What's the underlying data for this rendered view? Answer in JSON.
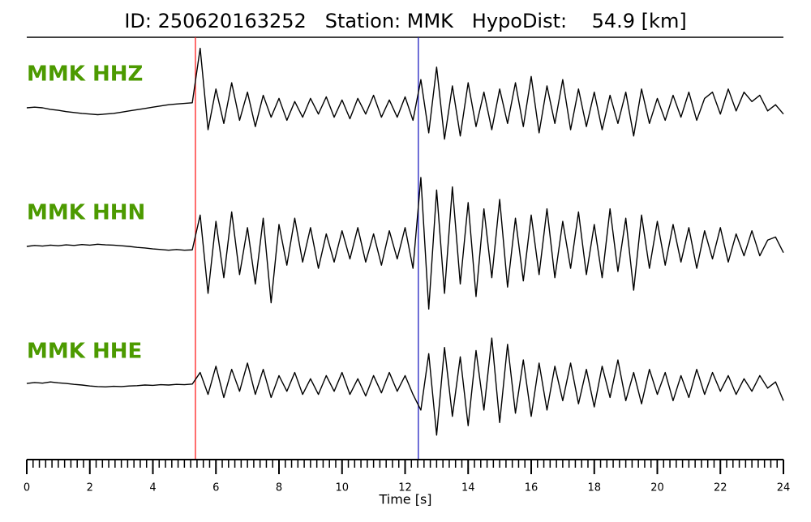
{
  "chart_data": {
    "type": "line",
    "title": "ID: 250620163252   Station: MMK   HypoDist:    54.9 [km]",
    "xlabel": "Time [s]",
    "x": [
      0,
      0.25,
      0.5,
      0.75,
      1,
      1.25,
      1.5,
      1.75,
      2,
      2.25,
      2.5,
      2.75,
      3,
      3.25,
      3.5,
      3.75,
      4,
      4.25,
      4.5,
      4.75,
      5,
      5.25,
      5.5,
      5.75,
      6,
      6.25,
      6.5,
      6.75,
      7,
      7.25,
      7.5,
      7.75,
      8,
      8.25,
      8.5,
      8.75,
      9,
      9.25,
      9.5,
      9.75,
      10,
      10.25,
      10.5,
      10.75,
      11,
      11.25,
      11.5,
      11.75,
      12,
      12.25,
      12.5,
      12.75,
      13,
      13.25,
      13.5,
      13.75,
      14,
      14.25,
      14.5,
      14.75,
      15,
      15.25,
      15.5,
      15.75,
      16,
      16.25,
      16.5,
      16.75,
      17,
      17.25,
      17.5,
      17.75,
      18,
      18.25,
      18.5,
      18.75,
      19,
      19.25,
      19.5,
      19.75,
      20,
      20.25,
      20.5,
      20.75,
      21,
      21.25,
      21.5,
      21.75,
      22,
      22.25,
      22.5,
      22.75,
      23,
      23.25,
      23.5,
      23.75,
      24
    ],
    "xlim": [
      0,
      24
    ],
    "xticks": [
      0,
      2,
      4,
      6,
      8,
      10,
      12,
      14,
      16,
      18,
      20,
      22,
      24
    ],
    "xminor_step": 0.2,
    "ylim": [
      -2.2,
      2.2
    ],
    "label_color": "#4c9a00",
    "vlines": [
      {
        "value": 5.35,
        "color": "#ff2020"
      },
      {
        "value": 12.42,
        "color": "#2020c0"
      }
    ],
    "series": [
      {
        "name": "MMK HHZ",
        "color": "#000000",
        "values": [
          0,
          0.02,
          0.0,
          -0.05,
          -0.08,
          -0.12,
          -0.15,
          -0.18,
          -0.2,
          -0.22,
          -0.2,
          -0.18,
          -0.14,
          -0.1,
          -0.06,
          -0.02,
          0.02,
          0.06,
          0.1,
          0.12,
          0.14,
          0.16,
          1.9,
          -0.7,
          0.6,
          -0.5,
          0.8,
          -0.4,
          0.5,
          -0.6,
          0.4,
          -0.3,
          0.3,
          -0.4,
          0.2,
          -0.3,
          0.3,
          -0.2,
          0.35,
          -0.3,
          0.25,
          -0.35,
          0.3,
          -0.2,
          0.4,
          -0.3,
          0.25,
          -0.3,
          0.35,
          -0.4,
          0.9,
          -0.8,
          1.3,
          -1.0,
          0.7,
          -0.9,
          0.8,
          -0.6,
          0.5,
          -0.7,
          0.6,
          -0.5,
          0.8,
          -0.6,
          1.0,
          -0.8,
          0.7,
          -0.5,
          0.9,
          -0.7,
          0.6,
          -0.6,
          0.5,
          -0.7,
          0.4,
          -0.5,
          0.5,
          -0.9,
          0.6,
          -0.5,
          0.3,
          -0.4,
          0.4,
          -0.3,
          0.5,
          -0.4,
          0.3,
          0.5,
          -0.2,
          0.6,
          -0.1,
          0.5,
          0.2,
          0.4,
          -0.1,
          0.1,
          -0.2
        ]
      },
      {
        "name": "MMK HHN",
        "color": "#000000",
        "values": [
          0,
          0.03,
          0.01,
          0.04,
          0.02,
          0.05,
          0.03,
          0.06,
          0.04,
          0.07,
          0.05,
          0.04,
          0.02,
          0.0,
          -0.03,
          -0.05,
          -0.08,
          -0.1,
          -0.12,
          -0.1,
          -0.12,
          -0.11,
          1.0,
          -1.5,
          0.8,
          -1.0,
          1.1,
          -0.9,
          0.6,
          -1.2,
          0.9,
          -1.8,
          0.7,
          -0.6,
          0.9,
          -0.5,
          0.6,
          -0.7,
          0.4,
          -0.5,
          0.5,
          -0.4,
          0.6,
          -0.5,
          0.4,
          -0.6,
          0.5,
          -0.4,
          0.6,
          -0.7,
          2.2,
          -2.0,
          1.8,
          -1.5,
          1.9,
          -1.2,
          1.4,
          -1.6,
          1.2,
          -1.0,
          1.5,
          -1.3,
          0.9,
          -1.1,
          1.0,
          -0.9,
          1.2,
          -1.0,
          0.8,
          -0.7,
          1.1,
          -0.9,
          0.7,
          -1.0,
          1.2,
          -0.8,
          0.9,
          -1.4,
          1.0,
          -0.7,
          0.8,
          -0.6,
          0.7,
          -0.5,
          0.6,
          -0.7,
          0.5,
          -0.4,
          0.6,
          -0.5,
          0.4,
          -0.3,
          0.5,
          -0.3,
          0.2,
          0.3,
          -0.2
        ]
      },
      {
        "name": "MMK HHE",
        "color": "#000000",
        "values": [
          0.05,
          0.08,
          0.06,
          0.1,
          0.07,
          0.05,
          0.02,
          0.0,
          -0.03,
          -0.05,
          -0.06,
          -0.04,
          -0.05,
          -0.03,
          -0.02,
          0.0,
          -0.01,
          0.01,
          0.0,
          0.02,
          0.01,
          0.03,
          0.4,
          -0.3,
          0.6,
          -0.4,
          0.5,
          -0.2,
          0.7,
          -0.3,
          0.5,
          -0.4,
          0.3,
          -0.2,
          0.4,
          -0.3,
          0.2,
          -0.3,
          0.3,
          -0.2,
          0.4,
          -0.3,
          0.2,
          -0.35,
          0.3,
          -0.25,
          0.4,
          -0.2,
          0.3,
          -0.3,
          -0.8,
          1.0,
          -1.6,
          1.2,
          -1.0,
          0.9,
          -1.3,
          1.1,
          -0.8,
          1.5,
          -1.2,
          1.3,
          -0.9,
          0.8,
          -1.0,
          0.7,
          -0.8,
          0.6,
          -0.5,
          0.7,
          -0.6,
          0.5,
          -0.7,
          0.6,
          -0.4,
          0.8,
          -0.5,
          0.4,
          -0.6,
          0.5,
          -0.3,
          0.4,
          -0.5,
          0.3,
          -0.4,
          0.5,
          -0.3,
          0.4,
          -0.2,
          0.3,
          -0.3,
          0.2,
          -0.2,
          0.3,
          -0.1,
          0.1,
          -0.5
        ]
      }
    ]
  }
}
